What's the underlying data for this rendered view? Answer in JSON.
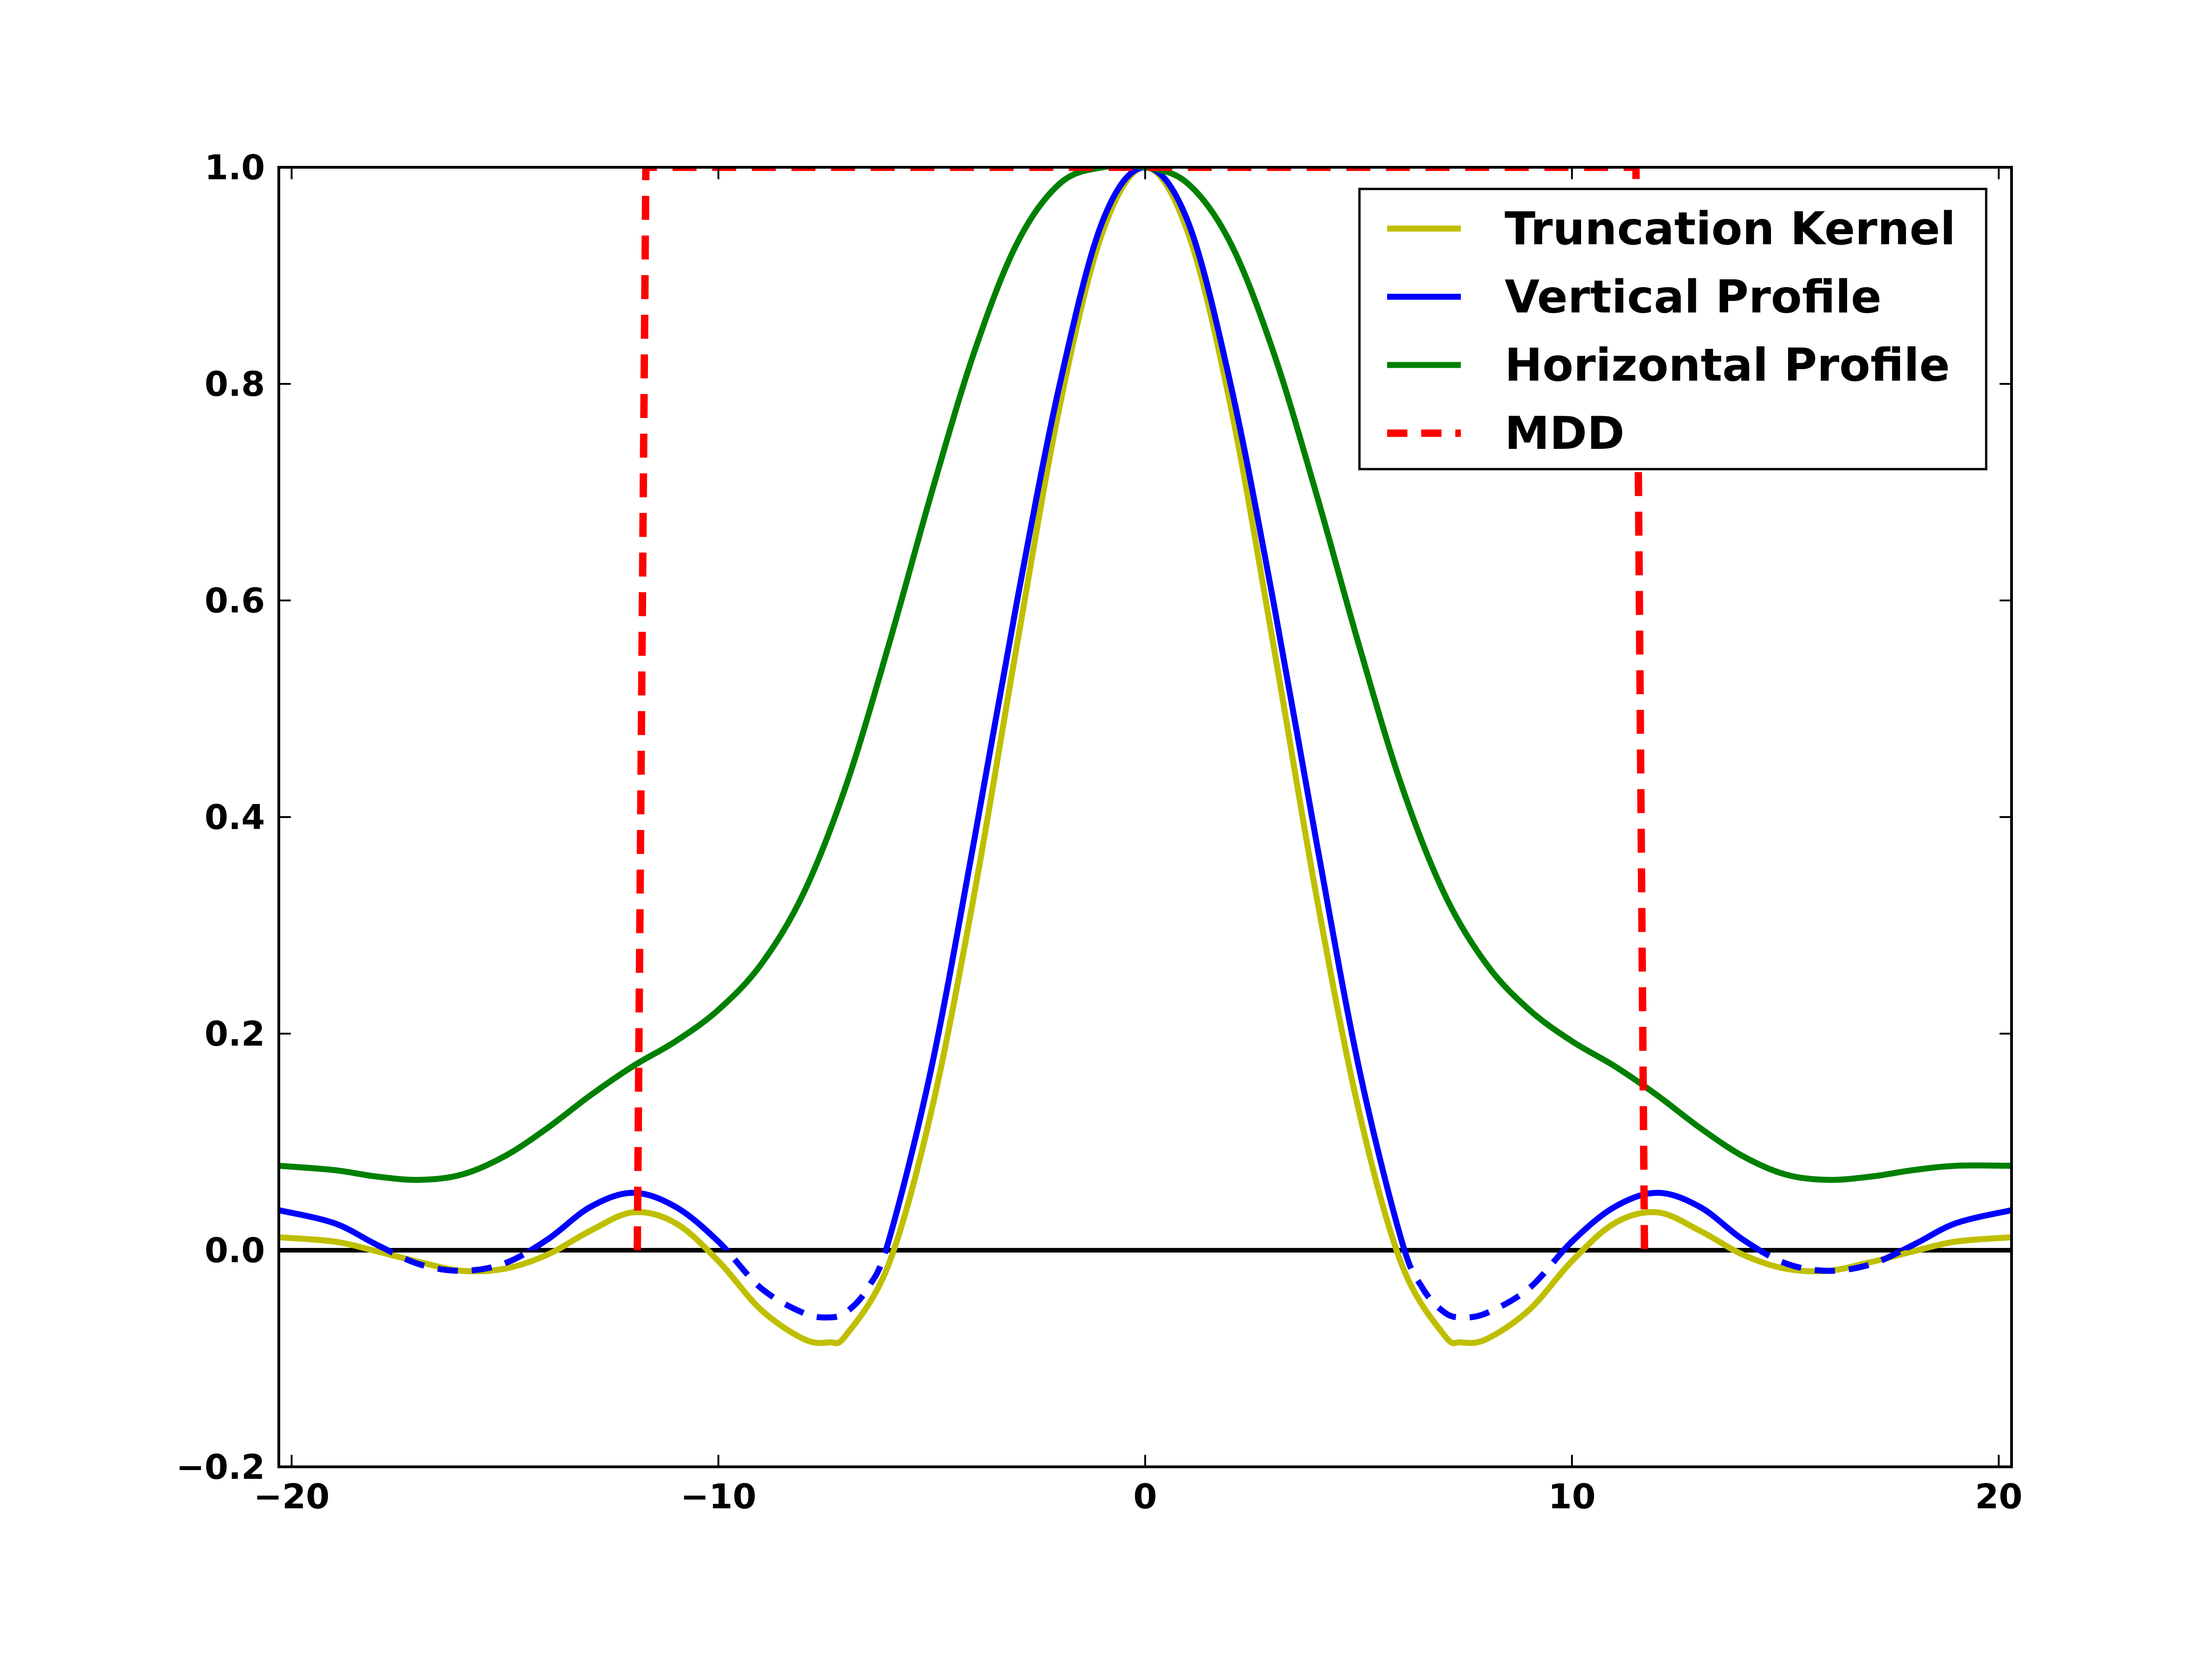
{
  "chart_data": {
    "type": "line",
    "title": "",
    "xlabel": "",
    "ylabel": "",
    "xlim": [
      -20.3,
      20.3
    ],
    "ylim": [
      -0.2,
      1.0
    ],
    "xticks": [
      -20,
      -10,
      0,
      10,
      20
    ],
    "xtick_labels": [
      "−20",
      "−10",
      "0",
      "10",
      "20"
    ],
    "yticks": [
      -0.2,
      0.0,
      0.2,
      0.4,
      0.6,
      0.8,
      1.0
    ],
    "ytick_labels": [
      "−0.2",
      "0.0",
      "0.2",
      "0.4",
      "0.6",
      "0.8",
      "1.0"
    ],
    "grid": false,
    "legend_position": "top-right",
    "zero_line": {
      "y": 0.0,
      "color": "#000000"
    },
    "series": [
      {
        "name": "Truncation Kernel",
        "color": "#bfbf00",
        "style": "solid",
        "x": [
          -20.3,
          -19,
          -18,
          -17,
          -16,
          -15,
          -14,
          -13,
          -12,
          -11,
          -10,
          -9,
          -8,
          -7.4,
          -7,
          -6,
          -5,
          -4,
          -3,
          -2,
          -1,
          0,
          1,
          2,
          3,
          4,
          5,
          6,
          7,
          7.4,
          8,
          9,
          10,
          11,
          12,
          13,
          14,
          15,
          16,
          17,
          18,
          19,
          20.3
        ],
        "y": [
          0.012,
          0.008,
          -0.001,
          -0.011,
          -0.019,
          -0.017,
          -0.004,
          0.018,
          0.035,
          0.025,
          -0.01,
          -0.055,
          -0.082,
          -0.085,
          -0.078,
          -0.012,
          0.13,
          0.33,
          0.56,
          0.78,
          0.94,
          1.0,
          0.94,
          0.78,
          0.56,
          0.33,
          0.13,
          -0.012,
          -0.078,
          -0.085,
          -0.082,
          -0.055,
          -0.01,
          0.025,
          0.035,
          0.018,
          -0.004,
          -0.017,
          -0.019,
          -0.011,
          -0.001,
          0.008,
          0.012
        ]
      },
      {
        "name": "Vertical Profile",
        "color": "#0000ff",
        "style": "solid",
        "x": [
          -20.3,
          -19,
          -18,
          -17,
          -16,
          -15,
          -14,
          -13,
          -12,
          -11,
          -10,
          -9,
          -8,
          -7.4,
          -7,
          -6.5,
          -6,
          -5,
          -4,
          -3,
          -2,
          -1,
          0,
          1,
          2,
          3,
          4,
          5,
          6,
          6.5,
          7,
          7.4,
          8,
          9,
          10,
          11,
          12,
          13,
          14,
          15,
          16,
          17,
          18,
          19,
          20.3
        ],
        "y": [
          0.037,
          0.025,
          0.005,
          -0.013,
          -0.019,
          -0.012,
          0.01,
          0.04,
          0.053,
          0.04,
          0.008,
          -0.035,
          -0.058,
          -0.062,
          -0.057,
          -0.035,
          0.01,
          0.17,
          0.38,
          0.6,
          0.8,
          0.95,
          1.0,
          0.95,
          0.8,
          0.6,
          0.38,
          0.17,
          0.01,
          -0.035,
          -0.057,
          -0.062,
          -0.058,
          -0.035,
          0.008,
          0.04,
          0.053,
          0.04,
          0.01,
          -0.012,
          -0.019,
          -0.013,
          0.005,
          0.025,
          0.037
        ]
      },
      {
        "name": "Horizontal Profile",
        "color": "#008000",
        "style": "solid",
        "x": [
          -20.3,
          -19,
          -18,
          -17,
          -16,
          -15,
          -14,
          -13,
          -12,
          -11,
          -10,
          -9,
          -8,
          -7,
          -6,
          -5,
          -4,
          -3,
          -2,
          -1,
          0,
          1,
          2,
          3,
          4,
          5,
          6,
          7,
          8,
          9,
          10,
          11,
          12,
          13,
          14,
          15,
          16,
          17,
          18,
          19,
          20.3
        ],
        "y": [
          0.078,
          0.074,
          0.068,
          0.065,
          0.07,
          0.087,
          0.113,
          0.143,
          0.17,
          0.193,
          0.222,
          0.264,
          0.33,
          0.43,
          0.56,
          0.7,
          0.83,
          0.93,
          0.985,
          1.0,
          1.0,
          0.985,
          0.93,
          0.83,
          0.7,
          0.56,
          0.43,
          0.33,
          0.264,
          0.222,
          0.193,
          0.17,
          0.143,
          0.113,
          0.087,
          0.07,
          0.065,
          0.068,
          0.074,
          0.078,
          0.078
        ]
      },
      {
        "name": "MDD",
        "color": "#ff0000",
        "style": "dashed",
        "x": [
          -11.9,
          -11.7,
          11.5,
          11.7
        ],
        "y": [
          0.0,
          1.0,
          1.0,
          0.0
        ]
      }
    ]
  },
  "legend": {
    "items": [
      {
        "label": "Truncation Kernel",
        "color": "#bfbf00",
        "style": "solid"
      },
      {
        "label": "Vertical Profile",
        "color": "#0000ff",
        "style": "solid"
      },
      {
        "label": "Horizontal Profile",
        "color": "#008000",
        "style": "solid"
      },
      {
        "label": "MDD",
        "color": "#ff0000",
        "style": "dashed"
      }
    ]
  }
}
